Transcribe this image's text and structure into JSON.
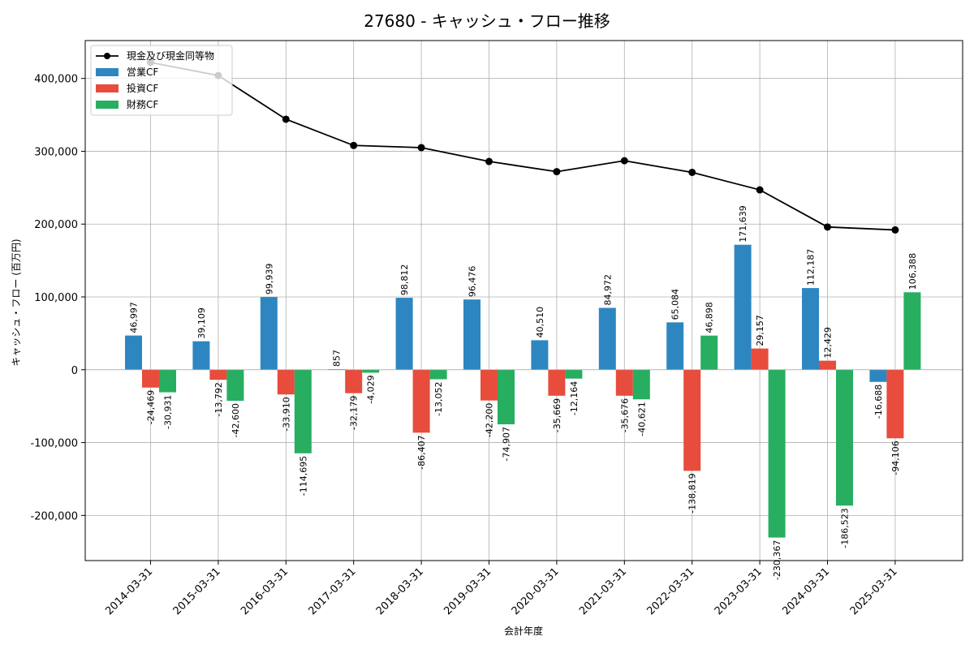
{
  "chart_data": {
    "type": "bar",
    "title": "27680 - キャッシュ・フロー推移",
    "xlabel": "会計年度",
    "ylabel": "キャッシュ・フロー (百万円)",
    "categories": [
      "2014-03-31",
      "2015-03-31",
      "2016-03-31",
      "2017-03-31",
      "2018-03-31",
      "2019-03-31",
      "2020-03-31",
      "2021-03-31",
      "2022-03-31",
      "2023-03-31",
      "2024-03-31",
      "2025-03-31"
    ],
    "ylim": [
      -262000,
      452000
    ],
    "yticks": [
      -200000,
      -100000,
      0,
      100000,
      200000,
      300000,
      400000
    ],
    "ytick_labels": [
      "-200,000",
      "-100,000",
      "0",
      "100,000",
      "200,000",
      "300,000",
      "400,000"
    ],
    "grid": true,
    "legend_position": "top-left",
    "series": [
      {
        "name": "営業CF",
        "type": "bar",
        "color": "#2e86c1",
        "values": [
          46997,
          39109,
          99939,
          857,
          98812,
          96476,
          40510,
          84972,
          65084,
          171639,
          112187,
          -16688
        ],
        "labels": [
          "46,997",
          "39,109",
          "99,939",
          "857",
          "98,812",
          "96,476",
          "40,510",
          "84,972",
          "65,084",
          "171,639",
          "112,187",
          "-16,688"
        ]
      },
      {
        "name": "投資CF",
        "type": "bar",
        "color": "#e74c3c",
        "values": [
          -24469,
          -13792,
          -33910,
          -32179,
          -86407,
          -42200,
          -35669,
          -35676,
          -138819,
          29157,
          12429,
          -94106
        ],
        "labels": [
          "-24,469",
          "-13,792",
          "-33,910",
          "-32,179",
          "-86,407",
          "-42,200",
          "-35,669",
          "-35,676",
          "-138,819",
          "29,157",
          "12,429",
          "-94,106"
        ]
      },
      {
        "name": "財務CF",
        "type": "bar",
        "color": "#27ae60",
        "values": [
          -30931,
          -42600,
          -114695,
          -4029,
          -13052,
          -74907,
          -12164,
          -40621,
          46898,
          -230367,
          -186523,
          106388
        ],
        "labels": [
          "-30,931",
          "-42,600",
          "-114,695",
          "-4,029",
          "-13,052",
          "-74,907",
          "-12,164",
          "-40,621",
          "46,898",
          "-230,367",
          "-186,523",
          "106,388"
        ]
      },
      {
        "name": "現金及び現金同等物",
        "type": "line",
        "color": "#000000",
        "values": [
          422000,
          404000,
          344000,
          308000,
          305000,
          286000,
          272000,
          287000,
          271000,
          247000,
          196000,
          192000
        ]
      }
    ]
  }
}
